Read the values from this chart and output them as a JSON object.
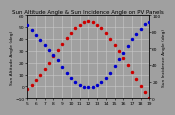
{
  "title": "Sun Altitude Angle & Sun Incidence Angle on PV Panels",
  "xlabel": "",
  "ylabel_left": "Sun Altitude Angle (deg)",
  "ylabel_right": "Sun Incidence Angle (deg)",
  "time_hours": [
    5.0,
    5.5,
    6.0,
    6.5,
    7.0,
    7.5,
    8.0,
    8.5,
    9.0,
    9.5,
    10.0,
    10.5,
    11.0,
    11.5,
    12.0,
    12.5,
    13.0,
    13.5,
    14.0,
    14.5,
    15.0,
    15.5,
    16.0,
    16.5,
    17.0,
    17.5,
    18.0,
    18.5,
    19.0
  ],
  "altitude_angle": [
    -2,
    1,
    5,
    10,
    15,
    20,
    26,
    31,
    36,
    41,
    45,
    49,
    52,
    54,
    55,
    54,
    52,
    49,
    45,
    40,
    35,
    30,
    24,
    18,
    12,
    6,
    0,
    -5,
    -10
  ],
  "incidence_angle": [
    88,
    82,
    76,
    70,
    64,
    58,
    52,
    46,
    38,
    30,
    24,
    19,
    16,
    14,
    13,
    14,
    16,
    19,
    24,
    31,
    39,
    47,
    55,
    63,
    71,
    78,
    84,
    89,
    92
  ],
  "altitude_color": "#cc0000",
  "incidence_color": "#0000cc",
  "background_color": "#a0a0a0",
  "grid_color": "#c8c8c8",
  "ylim_left": [
    -10,
    60
  ],
  "ylim_right": [
    0,
    100
  ],
  "yticks_left": [
    -10,
    0,
    10,
    20,
    30,
    40,
    50,
    60
  ],
  "yticks_right": [
    0,
    20,
    40,
    60,
    80,
    100
  ],
  "xlim": [
    5,
    19
  ],
  "xtick_vals": [
    5,
    6,
    7,
    8,
    9,
    10,
    11,
    12,
    13,
    14,
    15,
    16,
    17,
    18,
    19
  ],
  "title_fontsize": 4.0,
  "tick_fontsize": 3.2,
  "label_fontsize": 3.2,
  "marker_size": 1.5
}
